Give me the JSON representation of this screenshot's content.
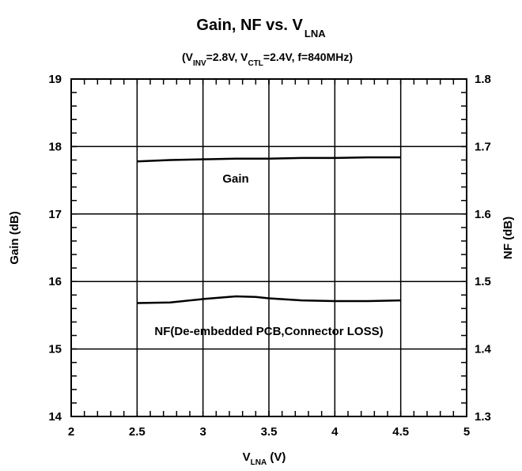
{
  "chart_data": {
    "type": "line",
    "title": {
      "main": "Gain, NF vs. V",
      "sub": "LNA"
    },
    "subtitle": {
      "p1": "(V",
      "s1": "INV",
      "p2": "=2.8V, V",
      "s2": "CTL",
      "p3": "=2.4V, f=840MHz)"
    },
    "xlabel": {
      "main": "V",
      "sub": "LNA",
      "unit": " (V)"
    },
    "ylabel_left": "Gain (dB)",
    "ylabel_right": "NF (dB)",
    "xlim": [
      2,
      5
    ],
    "ylim_left": [
      14,
      19
    ],
    "ylim_right": [
      1.3,
      1.8
    ],
    "xticks": [
      "2",
      "2.5",
      "3",
      "3.5",
      "4",
      "4.5",
      "5"
    ],
    "yticks_left": [
      "14",
      "15",
      "16",
      "17",
      "18",
      "19"
    ],
    "yticks_right": [
      "1.3",
      "1.4",
      "1.5",
      "1.6",
      "1.7",
      "1.8"
    ],
    "grid": true,
    "series": [
      {
        "name": "Gain",
        "axis": "left",
        "x": [
          2.5,
          2.75,
          3.0,
          3.25,
          3.5,
          3.75,
          4.0,
          4.25,
          4.5
        ],
        "y": [
          17.78,
          17.8,
          17.81,
          17.82,
          17.82,
          17.83,
          17.83,
          17.84,
          17.84
        ]
      },
      {
        "name": "NF(De-embedded PCB,Connector LOSS)",
        "axis": "right",
        "x": [
          2.5,
          2.75,
          3.0,
          3.25,
          3.4,
          3.5,
          3.75,
          4.0,
          4.25,
          4.5
        ],
        "y": [
          1.468,
          1.469,
          1.474,
          1.478,
          1.477,
          1.475,
          1.472,
          1.471,
          1.471,
          1.472
        ]
      }
    ]
  }
}
